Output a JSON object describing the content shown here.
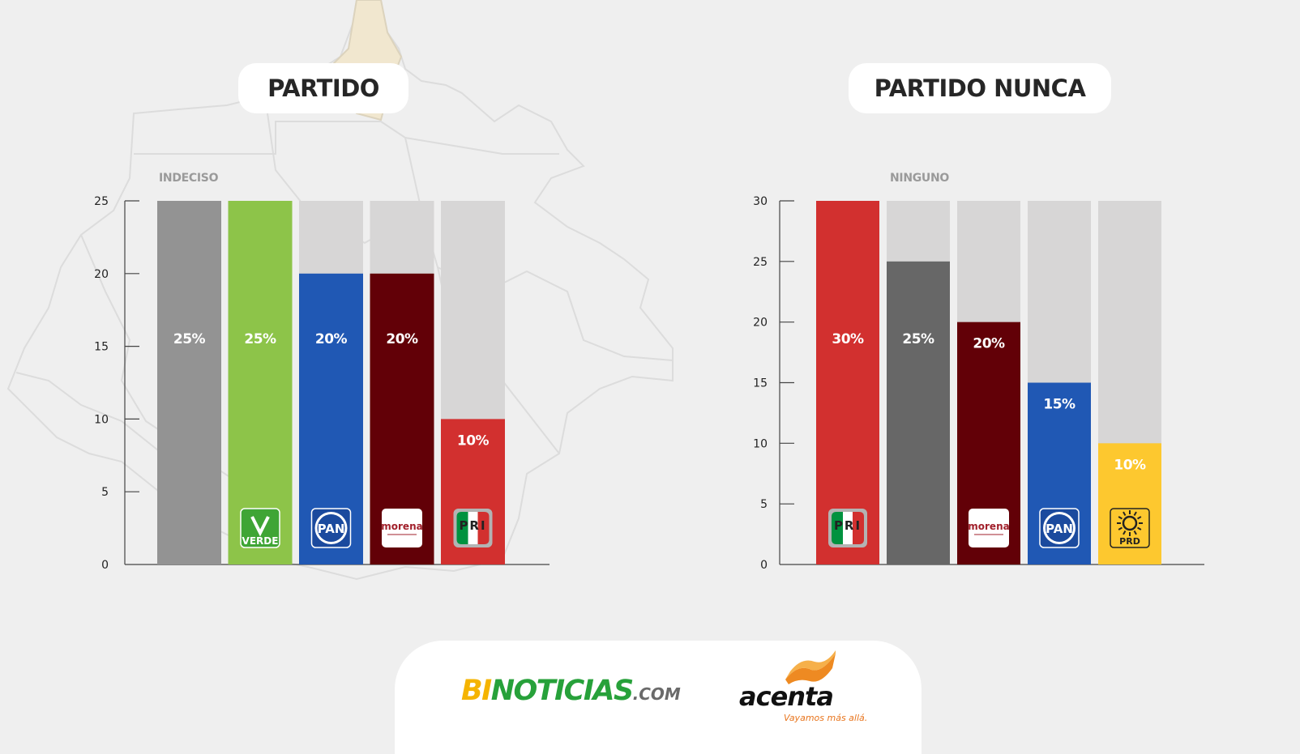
{
  "chart_data": [
    {
      "type": "bar",
      "title": "PARTIDO",
      "category_label": "INDECISO",
      "yticks": [
        0,
        5,
        10,
        15,
        20,
        25
      ],
      "ylim": [
        0,
        25
      ],
      "bars": [
        {
          "value": 25,
          "label": "25%",
          "color": "#939393",
          "logo": ""
        },
        {
          "value": 25,
          "label": "25%",
          "color": "#8dc449",
          "logo": "verde"
        },
        {
          "value": 20,
          "label": "20%",
          "color": "#2058b4",
          "logo": "pan"
        },
        {
          "value": 20,
          "label": "20%",
          "color": "#620007",
          "logo": "morena"
        },
        {
          "value": 10,
          "label": "10%",
          "color": "#d2302f",
          "logo": "pri"
        }
      ],
      "track_color": "#d7d6d6"
    },
    {
      "type": "bar",
      "title": "PARTIDO NUNCA",
      "category_label": "NINGUNO",
      "yticks": [
        0,
        5,
        10,
        15,
        20,
        25,
        30
      ],
      "ylim": [
        0,
        30
      ],
      "bars": [
        {
          "value": 30,
          "label": "30%",
          "color": "#d2302f",
          "logo": "pri"
        },
        {
          "value": 25,
          "label": "25%",
          "color": "#676767",
          "logo": ""
        },
        {
          "value": 20,
          "label": "20%",
          "color": "#620007",
          "logo": "morena"
        },
        {
          "value": 15,
          "label": "15%",
          "color": "#2058b4",
          "logo": "pan"
        },
        {
          "value": 10,
          "label": "10%",
          "color": "#fdc82f",
          "logo": "prd"
        }
      ],
      "track_color": "#d7d6d6"
    }
  ],
  "logos": {
    "verde": "VERDE",
    "pan": "PAN",
    "morena": "morena",
    "pri": "PRI",
    "prd": "PRD"
  },
  "footer": {
    "bi": "BI",
    "noticias": "NOTICIAS",
    "com": ".COM",
    "acenta": "acenta",
    "slogan": "Vayamos más allá."
  }
}
